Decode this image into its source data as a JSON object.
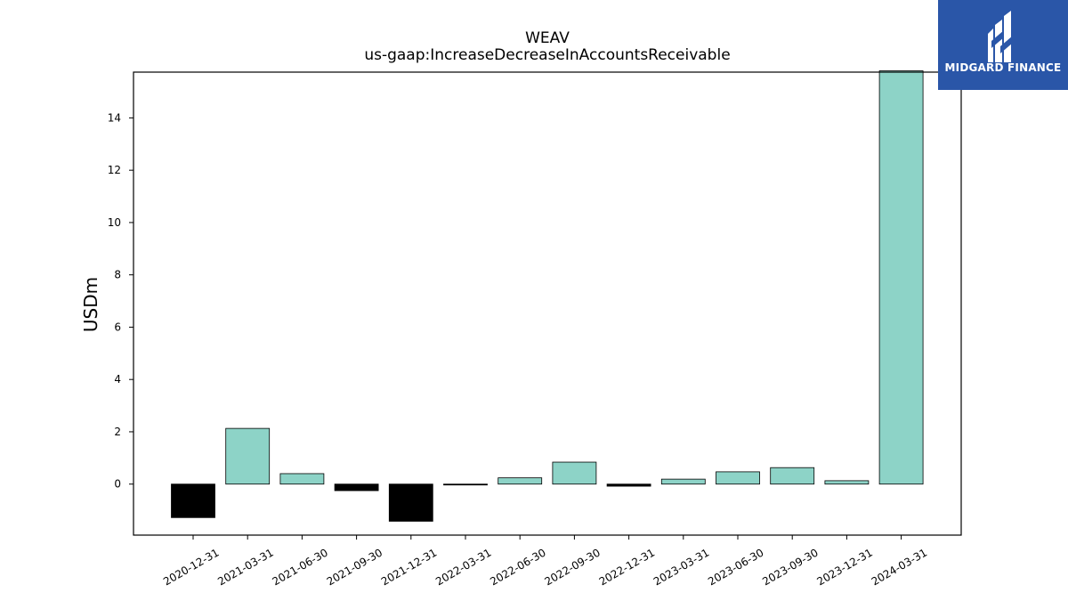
{
  "chart_data": {
    "type": "bar",
    "title": "WEAV",
    "subtitle": "us-gaap:IncreaseDecreaseInAccountsReceivable",
    "ylabel": "USDm",
    "xlabel": "",
    "categories": [
      "2020-12-31",
      "2021-03-31",
      "2021-06-30",
      "2021-09-30",
      "2021-12-31",
      "2022-03-31",
      "2022-06-30",
      "2022-09-30",
      "2022-12-31",
      "2023-03-31",
      "2023-06-30",
      "2023-09-30",
      "2023-12-31",
      "2024-03-31"
    ],
    "values": [
      -1.28,
      2.13,
      0.4,
      -0.25,
      -1.42,
      -0.02,
      0.24,
      0.84,
      -0.08,
      0.19,
      0.47,
      0.63,
      0.13,
      15.8
    ],
    "ylim": [
      -1.95,
      15.75
    ],
    "yticks": [
      0,
      2,
      4,
      6,
      8,
      10,
      12,
      14
    ],
    "colors": {
      "positive": "#8dd3c7",
      "negative": "#000000",
      "edge": "#000000"
    },
    "grid": false,
    "legend": "none"
  },
  "logo": {
    "text": "MIDGARD FINANCE",
    "color": "#2a56a8",
    "icon": "midgard-logo-icon"
  }
}
